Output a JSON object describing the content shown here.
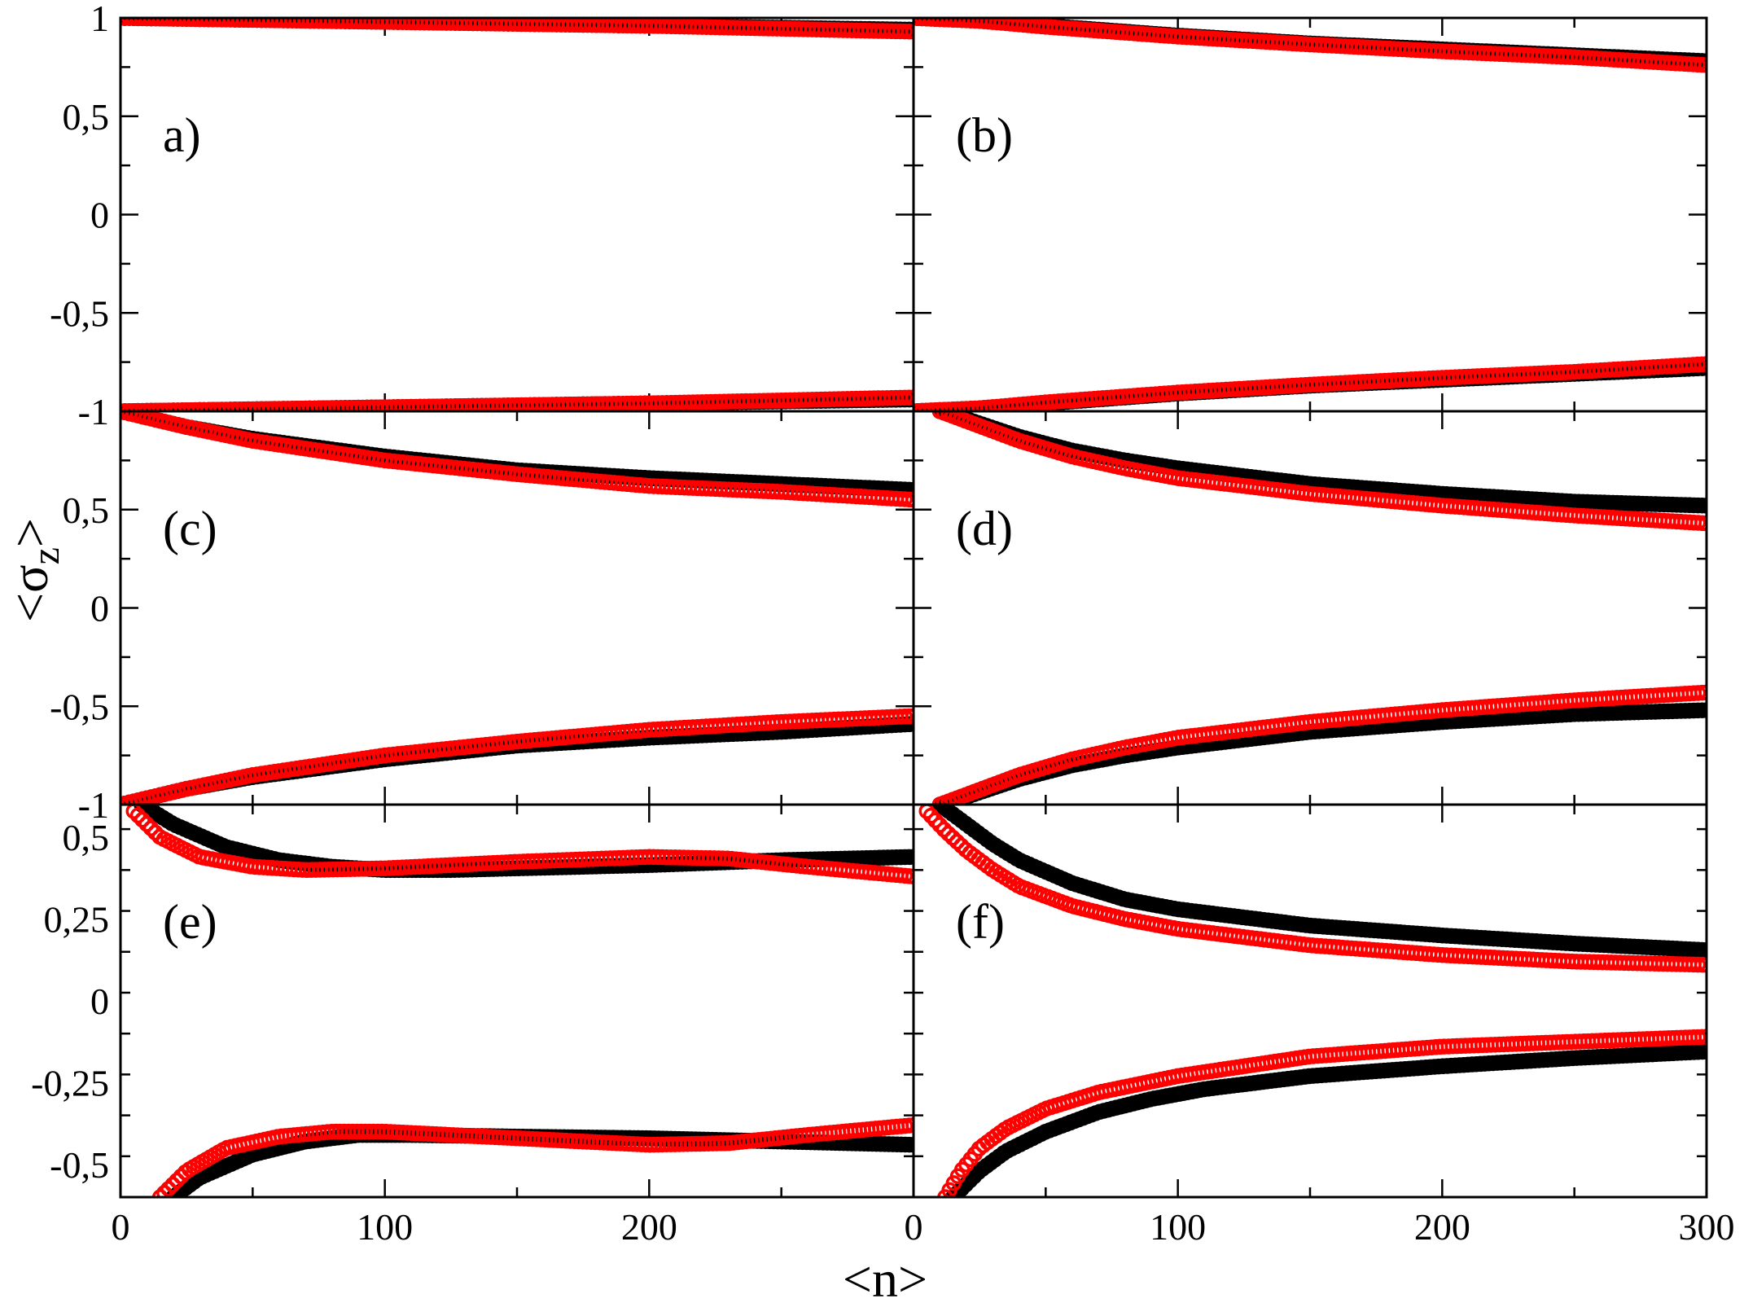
{
  "colors": {
    "black_series": "#000000",
    "red_series": "#ff0000",
    "axes": "#000000"
  },
  "axis_titles": {
    "x": "<n>",
    "y_main": "<σ",
    "y_sub": "z",
    "y_close": ">"
  },
  "chart_data": [
    {
      "type": "scatter",
      "panel": "a",
      "label": "a)",
      "xlim": [
        0,
        300
      ],
      "ylim": [
        -1,
        1
      ],
      "xticks": [],
      "yticks": [
        1,
        0.5,
        0,
        -0.5,
        -1
      ],
      "ytick_labels": [
        "1",
        "0,5",
        "0",
        "-0,5",
        "-1"
      ],
      "series": [
        {
          "color": "#000000",
          "points": [
            [
              0,
              1
            ],
            [
              50,
              0.99
            ],
            [
              100,
              0.98
            ],
            [
              150,
              0.97
            ],
            [
              200,
              0.96
            ],
            [
              250,
              0.95
            ],
            [
              300,
              0.94
            ]
          ]
        },
        {
          "color": "#000000",
          "points": [
            [
              0,
              -1
            ],
            [
              50,
              -0.99
            ],
            [
              100,
              -0.98
            ],
            [
              150,
              -0.97
            ],
            [
              200,
              -0.96
            ],
            [
              250,
              -0.95
            ],
            [
              300,
              -0.94
            ]
          ]
        },
        {
          "color": "#ff0000",
          "points": [
            [
              0,
              1
            ],
            [
              50,
              0.99
            ],
            [
              100,
              0.98
            ],
            [
              150,
              0.97
            ],
            [
              200,
              0.96
            ],
            [
              250,
              0.945
            ],
            [
              300,
              0.93
            ]
          ]
        },
        {
          "color": "#ff0000",
          "points": [
            [
              0,
              -1
            ],
            [
              50,
              -0.99
            ],
            [
              100,
              -0.98
            ],
            [
              150,
              -0.97
            ],
            [
              200,
              -0.96
            ],
            [
              250,
              -0.945
            ],
            [
              300,
              -0.93
            ]
          ]
        }
      ]
    },
    {
      "type": "scatter",
      "panel": "b",
      "label": "(b)",
      "xlim": [
        0,
        300
      ],
      "ylim": [
        -1,
        1
      ],
      "xticks": [],
      "yticks": [],
      "series": [
        {
          "color": "#000000",
          "points": [
            [
              0,
              1
            ],
            [
              25,
              0.985
            ],
            [
              50,
              0.96
            ],
            [
              100,
              0.91
            ],
            [
              150,
              0.87
            ],
            [
              200,
              0.84
            ],
            [
              250,
              0.81
            ],
            [
              300,
              0.78
            ]
          ]
        },
        {
          "color": "#000000",
          "points": [
            [
              0,
              -1
            ],
            [
              25,
              -0.985
            ],
            [
              50,
              -0.96
            ],
            [
              100,
              -0.91
            ],
            [
              150,
              -0.87
            ],
            [
              200,
              -0.84
            ],
            [
              250,
              -0.81
            ],
            [
              300,
              -0.78
            ]
          ]
        },
        {
          "color": "#ff0000",
          "points": [
            [
              0,
              1
            ],
            [
              25,
              0.985
            ],
            [
              50,
              0.955
            ],
            [
              100,
              0.905
            ],
            [
              150,
              0.865
            ],
            [
              200,
              0.83
            ],
            [
              250,
              0.8
            ],
            [
              300,
              0.76
            ]
          ]
        },
        {
          "color": "#ff0000",
          "points": [
            [
              0,
              -1
            ],
            [
              25,
              -0.985
            ],
            [
              50,
              -0.955
            ],
            [
              100,
              -0.905
            ],
            [
              150,
              -0.865
            ],
            [
              200,
              -0.83
            ],
            [
              250,
              -0.8
            ],
            [
              300,
              -0.76
            ]
          ]
        }
      ]
    },
    {
      "type": "scatter",
      "panel": "c",
      "label": "(c)",
      "xlim": [
        0,
        300
      ],
      "ylim": [
        -1,
        1
      ],
      "xticks": [],
      "yticks": [
        0.5,
        0,
        -0.5,
        -1
      ],
      "ytick_labels": [
        "0,5",
        "0",
        "-0,5",
        "-1"
      ],
      "series": [
        {
          "color": "#000000",
          "points": [
            [
              0,
              1
            ],
            [
              25,
              0.92
            ],
            [
              50,
              0.86
            ],
            [
              100,
              0.77
            ],
            [
              150,
              0.7
            ],
            [
              200,
              0.66
            ],
            [
              250,
              0.63
            ],
            [
              300,
              0.6
            ]
          ]
        },
        {
          "color": "#000000",
          "points": [
            [
              0,
              -1
            ],
            [
              25,
              -0.92
            ],
            [
              50,
              -0.86
            ],
            [
              100,
              -0.77
            ],
            [
              150,
              -0.7
            ],
            [
              200,
              -0.66
            ],
            [
              250,
              -0.63
            ],
            [
              300,
              -0.59
            ]
          ]
        },
        {
          "color": "#ff0000",
          "points": [
            [
              0,
              1
            ],
            [
              25,
              0.92
            ],
            [
              50,
              0.85
            ],
            [
              100,
              0.75
            ],
            [
              150,
              0.68
            ],
            [
              200,
              0.62
            ],
            [
              250,
              0.59
            ],
            [
              300,
              0.55
            ]
          ]
        },
        {
          "color": "#ff0000",
          "points": [
            [
              0,
              -1
            ],
            [
              25,
              -0.92
            ],
            [
              50,
              -0.85
            ],
            [
              100,
              -0.75
            ],
            [
              150,
              -0.68
            ],
            [
              200,
              -0.62
            ],
            [
              250,
              -0.58
            ],
            [
              300,
              -0.55
            ]
          ]
        }
      ]
    },
    {
      "type": "scatter",
      "panel": "d",
      "label": "(d)",
      "xlim": [
        0,
        300
      ],
      "ylim": [
        -1,
        1
      ],
      "xticks": [],
      "yticks": [],
      "series": [
        {
          "color": "#000000",
          "points": [
            [
              10,
              1
            ],
            [
              20,
              0.96
            ],
            [
              40,
              0.87
            ],
            [
              60,
              0.8
            ],
            [
              80,
              0.75
            ],
            [
              100,
              0.71
            ],
            [
              150,
              0.63
            ],
            [
              200,
              0.58
            ],
            [
              250,
              0.54
            ],
            [
              300,
              0.52
            ]
          ]
        },
        {
          "color": "#000000",
          "points": [
            [
              10,
              -1
            ],
            [
              20,
              -0.96
            ],
            [
              40,
              -0.87
            ],
            [
              60,
              -0.8
            ],
            [
              80,
              -0.75
            ],
            [
              100,
              -0.71
            ],
            [
              150,
              -0.63
            ],
            [
              200,
              -0.58
            ],
            [
              250,
              -0.54
            ],
            [
              300,
              -0.52
            ]
          ]
        },
        {
          "color": "#ff0000",
          "points": [
            [
              10,
              1
            ],
            [
              20,
              0.95
            ],
            [
              40,
              0.85
            ],
            [
              60,
              0.77
            ],
            [
              80,
              0.71
            ],
            [
              100,
              0.66
            ],
            [
              150,
              0.58
            ],
            [
              200,
              0.52
            ],
            [
              250,
              0.47
            ],
            [
              300,
              0.43
            ]
          ]
        },
        {
          "color": "#ff0000",
          "points": [
            [
              10,
              -1
            ],
            [
              20,
              -0.95
            ],
            [
              40,
              -0.85
            ],
            [
              60,
              -0.77
            ],
            [
              80,
              -0.71
            ],
            [
              100,
              -0.66
            ],
            [
              150,
              -0.58
            ],
            [
              200,
              -0.52
            ],
            [
              250,
              -0.47
            ],
            [
              300,
              -0.43
            ]
          ]
        }
      ]
    },
    {
      "type": "scatter",
      "panel": "e",
      "label": "(e)",
      "xlim": [
        0,
        300
      ],
      "ylim": [
        -0.6,
        0.6
      ],
      "xticks": [
        0,
        100,
        200
      ],
      "xtick_labels": [
        "0",
        "100",
        "200"
      ],
      "yticks": [
        0.5,
        0.25,
        0,
        -0.25,
        -0.5
      ],
      "ytick_labels": [
        "0,5",
        "0,25",
        "0",
        "-0,25",
        "-0,5"
      ],
      "series": [
        {
          "color": "#000000",
          "points": [
            [
              8,
              0.6
            ],
            [
              20,
              0.54
            ],
            [
              40,
              0.47
            ],
            [
              60,
              0.43
            ],
            [
              80,
              0.41
            ],
            [
              100,
              0.4
            ],
            [
              125,
              0.4
            ],
            [
              150,
              0.405
            ],
            [
              200,
              0.415
            ],
            [
              250,
              0.43
            ],
            [
              300,
              0.44
            ]
          ]
        },
        {
          "color": "#000000",
          "points": [
            [
              20,
              -0.6
            ],
            [
              30,
              -0.54
            ],
            [
              50,
              -0.47
            ],
            [
              70,
              -0.43
            ],
            [
              90,
              -0.41
            ],
            [
              110,
              -0.41
            ],
            [
              150,
              -0.415
            ],
            [
              200,
              -0.42
            ],
            [
              250,
              -0.43
            ],
            [
              300,
              -0.44
            ]
          ]
        },
        {
          "color": "#ff0000",
          "points": [
            [
              5,
              0.58
            ],
            [
              15,
              0.5
            ],
            [
              30,
              0.44
            ],
            [
              50,
              0.41
            ],
            [
              70,
              0.4
            ],
            [
              100,
              0.405
            ],
            [
              150,
              0.425
            ],
            [
              200,
              0.44
            ],
            [
              230,
              0.435
            ],
            [
              260,
              0.41
            ],
            [
              300,
              0.38
            ]
          ]
        },
        {
          "color": "#ff0000",
          "points": [
            [
              15,
              -0.6
            ],
            [
              25,
              -0.52
            ],
            [
              40,
              -0.45
            ],
            [
              60,
              -0.415
            ],
            [
              80,
              -0.4
            ],
            [
              100,
              -0.4
            ],
            [
              150,
              -0.42
            ],
            [
              200,
              -0.44
            ],
            [
              230,
              -0.435
            ],
            [
              260,
              -0.41
            ],
            [
              300,
              -0.38
            ]
          ]
        }
      ]
    },
    {
      "type": "scatter",
      "panel": "f",
      "label": "(f)",
      "xlim": [
        0,
        300
      ],
      "ylim": [
        -0.6,
        0.6
      ],
      "xticks": [
        0,
        100,
        200,
        300
      ],
      "xtick_labels": [
        "0",
        "100",
        "200",
        "300"
      ],
      "yticks": [],
      "series": [
        {
          "color": "#000000",
          "points": [
            [
              10,
              0.6
            ],
            [
              20,
              0.54
            ],
            [
              30,
              0.48
            ],
            [
              40,
              0.43
            ],
            [
              60,
              0.36
            ],
            [
              80,
              0.31
            ],
            [
              100,
              0.28
            ],
            [
              150,
              0.23
            ],
            [
              200,
              0.2
            ],
            [
              250,
              0.175
            ],
            [
              300,
              0.155
            ]
          ]
        },
        {
          "color": "#000000",
          "points": [
            [
              15,
              -0.6
            ],
            [
              25,
              -0.52
            ],
            [
              35,
              -0.46
            ],
            [
              50,
              -0.4
            ],
            [
              70,
              -0.34
            ],
            [
              90,
              -0.3
            ],
            [
              110,
              -0.27
            ],
            [
              150,
              -0.23
            ],
            [
              200,
              -0.2
            ],
            [
              250,
              -0.175
            ],
            [
              300,
              -0.155
            ]
          ]
        },
        {
          "color": "#ff0000",
          "points": [
            [
              5,
              0.58
            ],
            [
              12,
              0.52
            ],
            [
              20,
              0.46
            ],
            [
              30,
              0.4
            ],
            [
              40,
              0.35
            ],
            [
              60,
              0.29
            ],
            [
              80,
              0.25
            ],
            [
              100,
              0.22
            ],
            [
              150,
              0.17
            ],
            [
              200,
              0.14
            ],
            [
              250,
              0.12
            ],
            [
              300,
              0.11
            ]
          ]
        },
        {
          "color": "#ff0000",
          "points": [
            [
              12,
              -0.6
            ],
            [
              18,
              -0.52
            ],
            [
              25,
              -0.45
            ],
            [
              35,
              -0.39
            ],
            [
              50,
              -0.33
            ],
            [
              70,
              -0.28
            ],
            [
              100,
              -0.23
            ],
            [
              150,
              -0.17
            ],
            [
              200,
              -0.14
            ],
            [
              250,
              -0.125
            ],
            [
              300,
              -0.11
            ]
          ]
        }
      ]
    }
  ]
}
